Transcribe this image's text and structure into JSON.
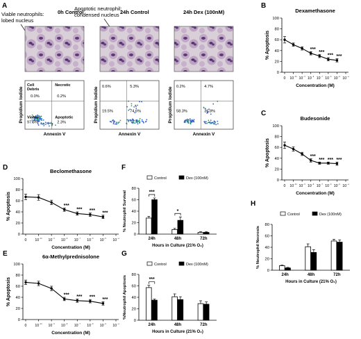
{
  "panel_letters": {
    "A": "A",
    "B": "B",
    "C": "C",
    "D": "D",
    "E": "E",
    "F": "F",
    "G": "G",
    "H": "H"
  },
  "micrographs": {
    "annotation_left": [
      "Viable neutrophils:",
      "lobed nucleus"
    ],
    "annotation_right": [
      "Apoptotic neutrophil:",
      "condensed nucleus"
    ],
    "titles": [
      "0h Control",
      "24h Control",
      "24h Dex (100nM)"
    ]
  },
  "flow": {
    "xlabel": "Annexin V",
    "ylabel": "Propidium Iodide",
    "quadrant_names": {
      "ul": [
        "Cell",
        "Debris"
      ],
      "ur": "Necrotic",
      "ll": "Viable",
      "lr": "Apoptotic"
    },
    "plots": [
      {
        "ul": "0.0%",
        "ur": "0.2%",
        "ll": "97.5%",
        "lr": "2.3%"
      },
      {
        "ul": "0.6%",
        "ur": "5.3%",
        "ll": "19.5%",
        "lr": "74.6%"
      },
      {
        "ul": "0.2%",
        "ur": "4.7%",
        "ll": "58.3%",
        "lr": "36.8%"
      }
    ]
  },
  "chart_data": [
    {
      "panel": "B",
      "type": "line",
      "title": "Dexamethasone",
      "xlabel": "Concentration (M)",
      "ylabel": "% Apoptosis",
      "ylim": [
        0,
        100
      ],
      "yticks": [
        "0",
        "20",
        "40",
        "60",
        "80",
        "100"
      ],
      "xticks": [
        "0",
        "10⁻¹⁰",
        "10⁻⁹",
        "10⁻⁸",
        "10⁻⁷",
        "10⁻⁶",
        "10⁻⁵",
        "10⁻⁴"
      ],
      "x": [
        "0",
        "10⁻¹⁰",
        "10⁻⁹",
        "10⁻⁸",
        "10⁻⁷",
        "10⁻⁶",
        "10⁻⁵"
      ],
      "values": [
        60,
        51,
        44,
        35,
        30,
        24,
        22
      ],
      "errors": [
        6,
        3,
        3,
        3,
        3,
        3,
        3
      ],
      "sig": [
        "",
        "",
        "",
        "***",
        "***",
        "***",
        "***"
      ]
    },
    {
      "panel": "C",
      "type": "line",
      "title": "Budesonide",
      "xlabel": "Concentration (M)",
      "ylabel": "% Apoptosis",
      "ylim": [
        0,
        100
      ],
      "yticks": [
        "0",
        "20",
        "40",
        "60",
        "80",
        "100"
      ],
      "xticks": [
        "0",
        "10⁻¹⁰",
        "10⁻⁹",
        "10⁻⁸",
        "10⁻⁷",
        "10⁻⁶",
        "10⁻⁵",
        "10⁻⁴"
      ],
      "x": [
        "0",
        "10⁻¹⁰",
        "10⁻⁹",
        "10⁻⁸",
        "10⁻⁷",
        "10⁻⁶",
        "10⁻⁵"
      ],
      "values": [
        64,
        57,
        48,
        36,
        31,
        31,
        30
      ],
      "errors": [
        6,
        4,
        3,
        3,
        2,
        2,
        3
      ],
      "sig": [
        "",
        "",
        "",
        "***",
        "***",
        "***",
        "***"
      ]
    },
    {
      "panel": "D",
      "type": "line",
      "title": "Beclomethasone",
      "xlabel": "Concentration (M)",
      "ylabel": "% Apoptosis",
      "ylim": [
        0,
        100
      ],
      "yticks": [
        "0",
        "20",
        "40",
        "60",
        "80",
        "100"
      ],
      "xticks": [
        "0",
        "10⁻¹⁰",
        "10⁻⁹",
        "10⁻⁸",
        "10⁻⁷",
        "10⁻⁶",
        "10⁻⁵",
        "10⁻⁴"
      ],
      "x": [
        "0",
        "10⁻¹⁰",
        "10⁻⁹",
        "10⁻⁸",
        "10⁻⁷",
        "10⁻⁶",
        "10⁻⁵"
      ],
      "values": [
        67,
        66,
        57,
        44,
        37,
        35,
        31
      ],
      "errors": [
        5,
        5,
        4,
        3,
        3,
        3,
        3
      ],
      "sig": [
        "",
        "",
        "",
        "***",
        "***",
        "***",
        "***"
      ]
    },
    {
      "panel": "E",
      "type": "line",
      "title": "6α-Methylprednisolone",
      "xlabel": "Concentration (M)",
      "ylabel": "% Apoptosis",
      "ylim": [
        0,
        100
      ],
      "yticks": [
        "0",
        "20",
        "40",
        "60",
        "80",
        "100"
      ],
      "xticks": [
        "0",
        "10⁻¹⁰",
        "10⁻⁹",
        "10⁻⁸",
        "10⁻⁷",
        "10⁻⁶",
        "10⁻⁵",
        "10⁻⁴"
      ],
      "x": [
        "0",
        "10⁻¹⁰",
        "10⁻⁹",
        "10⁻⁸",
        "10⁻⁷",
        "10⁻⁶",
        "10⁻⁵"
      ],
      "values": [
        67,
        65,
        56,
        37,
        34,
        33,
        29
      ],
      "errors": [
        4,
        4,
        4,
        3,
        3,
        3,
        3
      ],
      "sig": [
        "",
        "",
        "",
        "***",
        "***",
        "***",
        "***"
      ]
    },
    {
      "panel": "F",
      "type": "bar",
      "ylabel": "% Neutrophil Survival",
      "xlabel": "Hours in Culture (21% O₂)",
      "ylim": [
        0,
        80
      ],
      "yticks": [
        "0",
        "20",
        "40",
        "60",
        "80"
      ],
      "categories": [
        "24h",
        "48h",
        "72h"
      ],
      "legend": [
        "Control",
        "Dex (100nM)"
      ],
      "series": [
        {
          "name": "Control",
          "values": [
            28,
            8,
            3
          ],
          "errors": [
            3,
            2,
            1
          ]
        },
        {
          "name": "Dex (100nM)",
          "values": [
            60,
            24,
            3
          ],
          "errors": [
            3,
            6,
            1
          ]
        }
      ],
      "significance": [
        {
          "category": 0,
          "label": "***"
        },
        {
          "category": 1,
          "label": "*"
        }
      ]
    },
    {
      "panel": "G",
      "type": "bar",
      "ylabel": "%Neutrophil Apoptosis",
      "xlabel": "Hours in Culture (21% O₂)",
      "ylim": [
        0,
        80
      ],
      "yticks": [
        "0",
        "20",
        "40",
        "60",
        "80"
      ],
      "categories": [
        "24h",
        "48h",
        "72h"
      ],
      "legend": [
        "Control",
        "Dex (100nM)"
      ],
      "series": [
        {
          "name": "Control",
          "values": [
            57,
            41,
            29
          ],
          "errors": [
            4,
            5,
            5
          ]
        },
        {
          "name": "Dex (100nM)",
          "values": [
            35,
            36,
            28
          ],
          "errors": [
            2,
            5,
            4
          ]
        }
      ],
      "significance": [
        {
          "category": 0,
          "label": "***"
        }
      ]
    },
    {
      "panel": "H",
      "type": "bar",
      "ylabel": "% Neutrophil Necrosis",
      "xlabel": "Hours in Culture (21% O₂)",
      "ylim": [
        0,
        80
      ],
      "yticks": [
        "0",
        "20",
        "40",
        "60",
        "80"
      ],
      "categories": [
        "24h",
        "48h",
        "72h"
      ],
      "legend": [
        "Control",
        "Dex (100nM)"
      ],
      "series": [
        {
          "name": "Control",
          "values": [
            8,
            41,
            51
          ],
          "errors": [
            1,
            5,
            3
          ]
        },
        {
          "name": "Dex (100nM)",
          "values": [
            4,
            31,
            49
          ],
          "errors": [
            1,
            5,
            4
          ]
        }
      ],
      "significance": []
    }
  ]
}
